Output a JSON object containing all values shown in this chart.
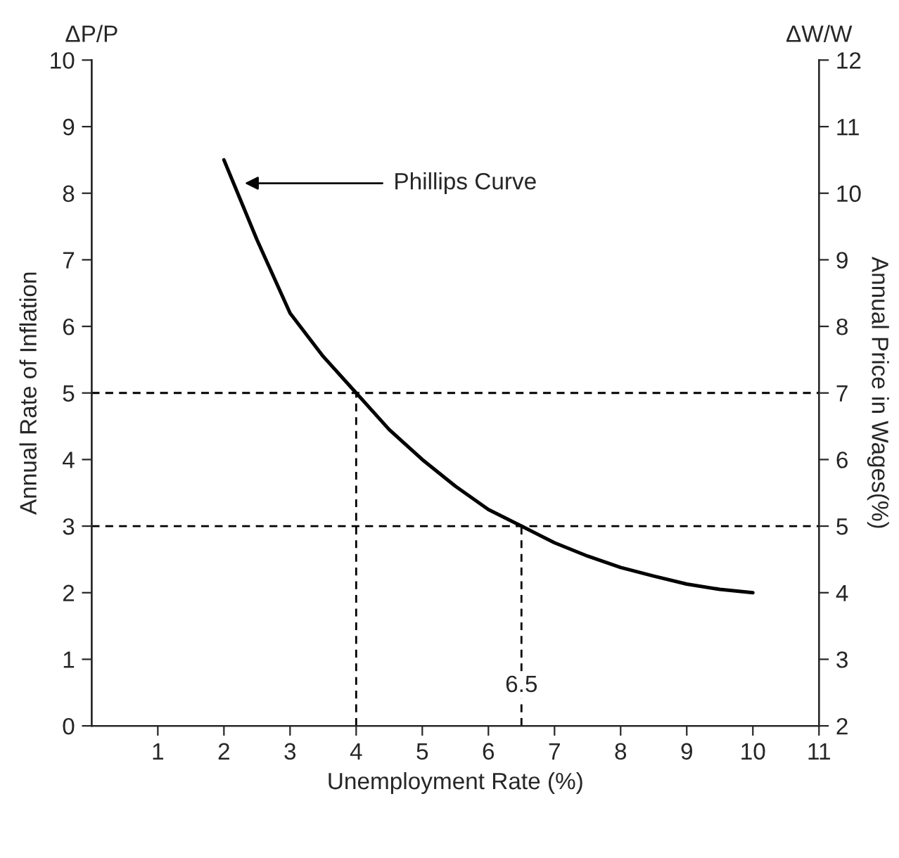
{
  "chart_data": {
    "type": "line",
    "xlabel": "Unemployment Rate (%)",
    "ylabel": "Annual Rate of Inflation",
    "y2label": "Annual Price in Wages(%)",
    "xlim": [
      0,
      11
    ],
    "xticks": [
      1,
      2,
      3,
      4,
      5,
      6,
      7,
      8,
      9,
      10,
      11
    ],
    "ylim": [
      0,
      10
    ],
    "yticks": [
      0,
      1,
      2,
      3,
      4,
      5,
      6,
      7,
      8,
      9,
      10
    ],
    "y2lim": [
      2,
      12
    ],
    "y2ticks": [
      2,
      3,
      4,
      5,
      6,
      7,
      8,
      9,
      10,
      11,
      12
    ],
    "series": [
      {
        "color": "#000000",
        "line_style": "solid",
        "x": [
          2,
          2.5,
          3,
          3.5,
          4,
          4.5,
          5,
          5.5,
          6,
          6.5,
          7,
          7.5,
          8,
          8.5,
          9,
          9.5,
          10
        ],
        "values": [
          8.5,
          7.3,
          6.2,
          5.55,
          5,
          4.45,
          4.0,
          3.6,
          3.25,
          3.0,
          2.75,
          2.55,
          2.38,
          2.25,
          2.13,
          2.05,
          2.0
        ]
      },
      {
        "color": "#000000",
        "line_style": "dashed",
        "x": [
          4,
          4
        ],
        "values": [
          0,
          5
        ]
      },
      {
        "color": "#000000",
        "line_style": "dashed",
        "x": [
          6.5,
          6.5
        ],
        "values": [
          0,
          3
        ]
      }
    ],
    "ref_lines": [
      {
        "axis": "y",
        "value": 5,
        "color": "#000000",
        "line_style": "dashed"
      },
      {
        "axis": "y",
        "value": 3,
        "color": "#000000",
        "line_style": "dashed"
      }
    ],
    "annotations": [
      "ΔP/P",
      "ΔW/W",
      "Phillips Curve",
      {
        "text": "6.5",
        "x": 6.5,
        "y": 0.6
      }
    ],
    "grid": false,
    "legend": false,
    "marker": "none"
  }
}
